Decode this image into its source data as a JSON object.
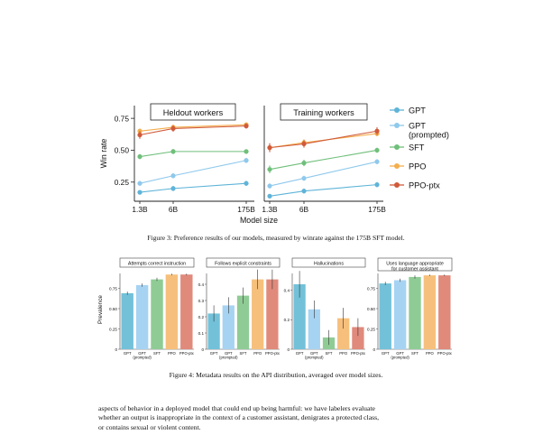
{
  "figure3": {
    "caption": "Figure 3: Preference results of our models, measured by winrate against the 175B SFT model.",
    "ylabel": "Win rate",
    "xlabel": "Model size",
    "yticks": [
      "0.25",
      "0.50",
      "0.75"
    ],
    "xticks": [
      "1.3B",
      "6B",
      "175B"
    ],
    "panels": [
      {
        "title": "Heldout workers"
      },
      {
        "title": "Training workers"
      }
    ],
    "legend": [
      {
        "label": "GPT",
        "color": "#5fb4d8"
      },
      {
        "label": "GPT\n(prompted)",
        "color": "#8fc9ec"
      },
      {
        "label": "SFT",
        "color": "#6fbf7a"
      },
      {
        "label": "PPO",
        "color": "#f3ae4e"
      },
      {
        "label": "PPO-ptx",
        "color": "#d05a3a"
      }
    ]
  },
  "figure4": {
    "caption": "Figure 4: Metadata results on the API distribution, averaged over model sizes.",
    "ylabel": "Prevalence",
    "categories": [
      "GPT",
      "GPT\n(prompted)",
      "SFT",
      "PPO",
      "PPO-ptx"
    ],
    "colors": [
      "#73c1d9",
      "#a7d3f2",
      "#8fcc95",
      "#f6c07c",
      "#e08a7c"
    ],
    "panels": [
      {
        "title": "Attempts correct instruction",
        "yticks": [
          "0",
          "0.25",
          "0.50",
          "0.75"
        ]
      },
      {
        "title": "Follows explicit constraints",
        "yticks": [
          "0",
          "0.1",
          "0.2",
          "0.3",
          "0.4"
        ]
      },
      {
        "title": "Hallucinations",
        "yticks": [
          "0",
          "0.2",
          "0.4"
        ]
      },
      {
        "title": "Uses language appropriate\nfor customer assistant",
        "yticks": [
          "0",
          "0.25",
          "0.50",
          "0.75"
        ]
      }
    ]
  },
  "body_lines": [
    "aspects of behavior in a deployed model that could end up being harmful: we have labelers evaluate",
    "whether an output is inappropriate in the context of a customer assistant, denigrates a protected class,",
    "or contains sexual or violent content."
  ],
  "chart_data": [
    {
      "type": "line",
      "title": "Heldout workers",
      "x": [
        "1.3B",
        "6B",
        "175B"
      ],
      "ylabel": "Win rate",
      "xlabel": "Model size",
      "ylim": [
        0.1,
        0.85
      ],
      "yscale": "linear",
      "series": [
        {
          "name": "GPT",
          "values": [
            0.17,
            0.2,
            0.24
          ],
          "err": [
            0.015,
            0.02,
            0.02
          ]
        },
        {
          "name": "GPT (prompted)",
          "values": [
            0.24,
            0.3,
            0.42
          ],
          "err": [
            0.02,
            0.02,
            0.02
          ]
        },
        {
          "name": "SFT",
          "values": [
            0.45,
            0.49,
            0.49
          ],
          "err": [
            0.02,
            0.02,
            0.01
          ]
        },
        {
          "name": "PPO",
          "values": [
            0.65,
            0.68,
            0.7
          ],
          "err": [
            0.02,
            0.02,
            0.02
          ]
        },
        {
          "name": "PPO-ptx",
          "values": [
            0.62,
            0.67,
            0.69
          ],
          "err": [
            0.03,
            0.025,
            0.02
          ]
        }
      ]
    },
    {
      "type": "line",
      "title": "Training workers",
      "x": [
        "1.3B",
        "6B",
        "175B"
      ],
      "ylabel": "Win rate",
      "xlabel": "Model size",
      "ylim": [
        0.1,
        0.85
      ],
      "yscale": "linear",
      "series": [
        {
          "name": "GPT",
          "values": [
            0.14,
            0.18,
            0.23
          ],
          "err": [
            0.015,
            0.02,
            0.02
          ]
        },
        {
          "name": "GPT (prompted)",
          "values": [
            0.22,
            0.28,
            0.41
          ],
          "err": [
            0.02,
            0.02,
            0.02
          ]
        },
        {
          "name": "SFT",
          "values": [
            0.35,
            0.4,
            0.5
          ],
          "err": [
            0.03,
            0.025,
            0.02
          ]
        },
        {
          "name": "PPO",
          "values": [
            0.52,
            0.56,
            0.63
          ],
          "err": [
            0.03,
            0.025,
            0.02
          ]
        },
        {
          "name": "PPO-ptx",
          "values": [
            0.52,
            0.55,
            0.65
          ],
          "err": [
            0.035,
            0.03,
            0.03
          ]
        }
      ]
    },
    {
      "type": "bar",
      "title": "Attempts correct instruction",
      "categories": [
        "GPT",
        "GPT (prompted)",
        "SFT",
        "PPO",
        "PPO-ptx"
      ],
      "values": [
        0.69,
        0.79,
        0.86,
        0.92,
        0.92
      ],
      "err": [
        0.02,
        0.02,
        0.02,
        0.01,
        0.01
      ],
      "ylabel": "Prevalence",
      "ylim": [
        0,
        1.0
      ]
    },
    {
      "type": "bar",
      "title": "Follows explicit constraints",
      "categories": [
        "GPT",
        "GPT (prompted)",
        "SFT",
        "PPO",
        "PPO-ptx"
      ],
      "values": [
        0.22,
        0.27,
        0.33,
        0.43,
        0.43
      ],
      "err": [
        0.05,
        0.05,
        0.05,
        0.06,
        0.06
      ],
      "ylabel": "Prevalence",
      "ylim": [
        0,
        0.5
      ]
    },
    {
      "type": "bar",
      "title": "Hallucinations",
      "categories": [
        "GPT",
        "GPT (prompted)",
        "SFT",
        "PPO",
        "PPO-ptx"
      ],
      "values": [
        0.44,
        0.27,
        0.08,
        0.21,
        0.15
      ],
      "err": [
        0.09,
        0.06,
        0.05,
        0.07,
        0.06
      ],
      "ylabel": "Prevalence",
      "ylim": [
        0,
        0.55
      ]
    },
    {
      "type": "bar",
      "title": "Uses language appropriate for customer assistant",
      "categories": [
        "GPT",
        "GPT (prompted)",
        "SFT",
        "PPO",
        "PPO-ptx"
      ],
      "values": [
        0.81,
        0.85,
        0.89,
        0.91,
        0.91
      ],
      "err": [
        0.02,
        0.02,
        0.02,
        0.01,
        0.01
      ],
      "ylabel": "Prevalence",
      "ylim": [
        0,
        1.0
      ]
    }
  ]
}
